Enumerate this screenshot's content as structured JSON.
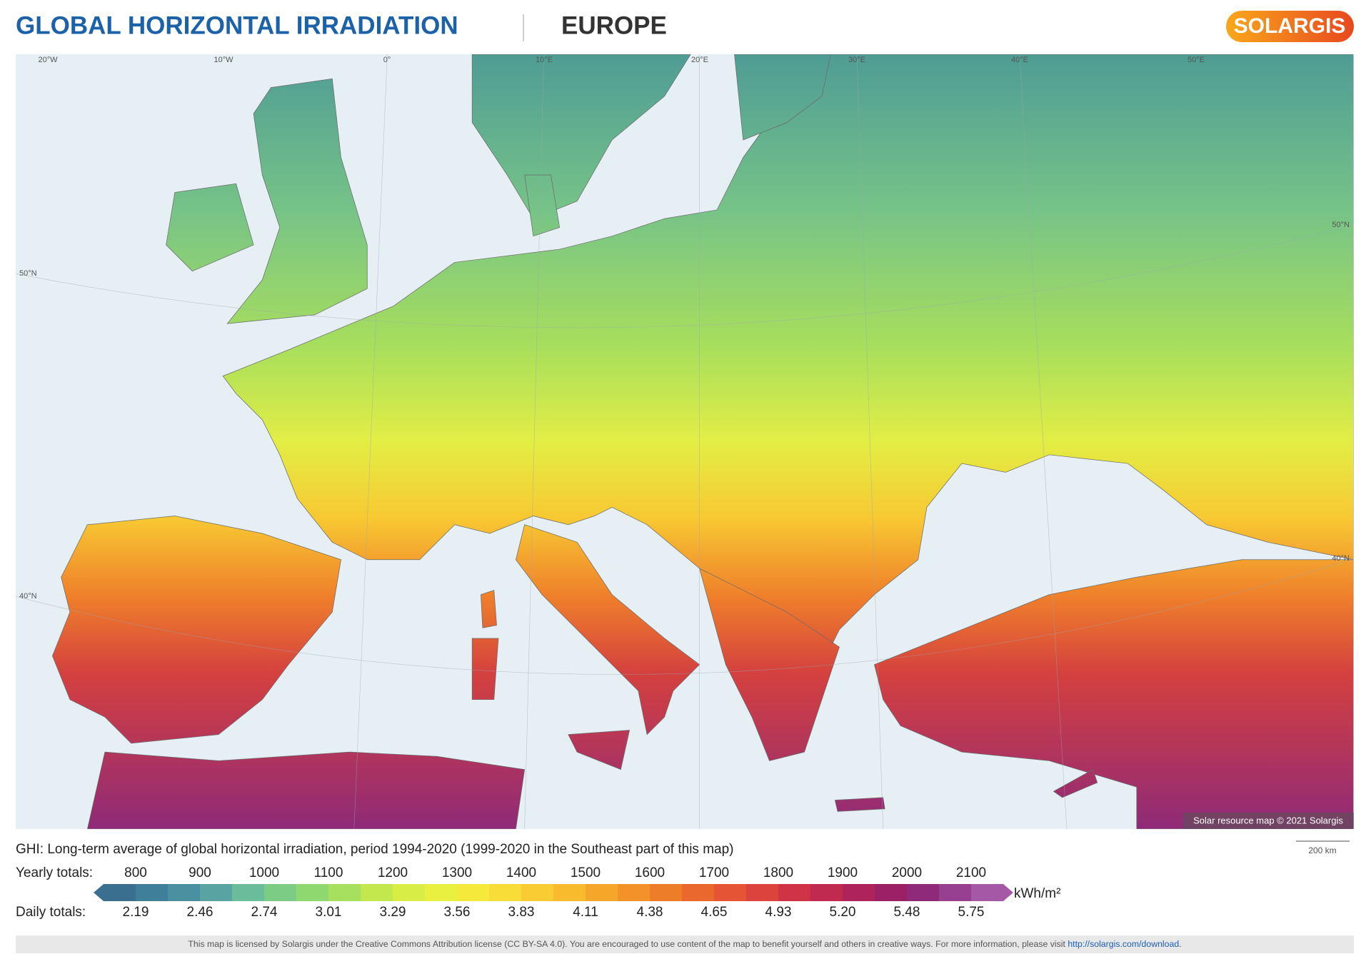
{
  "header": {
    "title": "GLOBAL HORIZONTAL IRRADIATION",
    "region": "EUROPE",
    "logo": "SOLARGIS"
  },
  "map": {
    "longitude_labels": [
      "20°W",
      "10°W",
      "0°",
      "10°E",
      "20°E",
      "30°E",
      "40°E",
      "50°E"
    ],
    "latitude_labels_left": [
      "50°N",
      "40°N"
    ],
    "latitude_labels_right": [
      "50°N",
      "40°N"
    ],
    "credit": "Solar resource map © 2021 Solargis",
    "scale_label": "200 km"
  },
  "legend": {
    "description": "GHI: Long-term average of global horizontal irradiation, period 1994-2020 (1999-2020 in the Southeast part of this map)",
    "yearly_label": "Yearly totals:",
    "yearly_values": [
      "800",
      "900",
      "1000",
      "1100",
      "1200",
      "1300",
      "1400",
      "1500",
      "1600",
      "1700",
      "1800",
      "1900",
      "2000",
      "2100"
    ],
    "daily_label": "Daily totals:",
    "daily_values": [
      "2.19",
      "2.46",
      "2.74",
      "3.01",
      "3.29",
      "3.56",
      "3.83",
      "4.11",
      "4.38",
      "4.65",
      "4.93",
      "5.20",
      "5.48",
      "5.75"
    ],
    "unit": "kWh/m²",
    "colors": [
      "#3a6f8f",
      "#3f7f9a",
      "#4a90a0",
      "#5aa3a3",
      "#6bbc9a",
      "#7ccc86",
      "#8fd870",
      "#a6e05e",
      "#c2e84e",
      "#d8ee46",
      "#eaf040",
      "#f5ea3c",
      "#f8dc38",
      "#f9cc33",
      "#f8bb2e",
      "#f5a72a",
      "#f29228",
      "#ee7d2a",
      "#ea682e",
      "#e55535",
      "#db433c",
      "#cf3446",
      "#c02a50",
      "#ae235a",
      "#9c2064",
      "#8f2a78",
      "#973f91",
      "#a558a6"
    ]
  },
  "footer": {
    "text": "This map is licensed by Solargis under the Creative Commons Attribution license (CC BY-SA 4.0). You are encouraged to use content of the map to benefit yourself and others in creative ways. For more information, please visit ",
    "link": "http://solargis.com/download",
    "end": "."
  }
}
